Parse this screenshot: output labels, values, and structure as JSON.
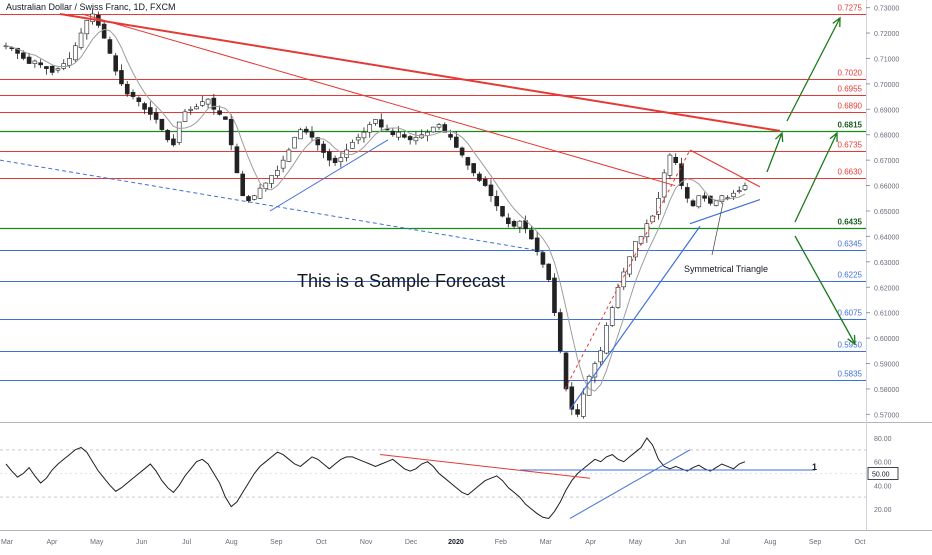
{
  "header": {
    "symbol_title": "Australian Dollar / Swiss Franc, 1D, FXCM"
  },
  "chart_data": {
    "type": "candlestick",
    "annotation_main": "This is a Sample Forecast",
    "annotation_pattern": "Symmetrical Triangle",
    "price_axis": {
      "ticks": [
        "0.73000",
        "0.72000",
        "0.71000",
        "0.70000",
        "0.69000",
        "0.68000",
        "0.67000",
        "0.66000",
        "0.65000",
        "0.64000",
        "0.63000",
        "0.62000",
        "0.61000",
        "0.60000",
        "0.59000",
        "0.58000",
        "0.57000"
      ],
      "range": [
        0.567,
        0.733
      ]
    },
    "time_axis": {
      "labels": [
        "Mar",
        "Apr",
        "May",
        "Jun",
        "Jul",
        "Aug",
        "Sep",
        "Oct",
        "Nov",
        "Dec",
        "2020",
        "Feb",
        "Mar",
        "Apr",
        "May",
        "Jun",
        "Jul",
        "Aug",
        "Sep",
        "Oct"
      ]
    },
    "levels": [
      {
        "value": "0.7275",
        "price": 0.7275,
        "color": "#e53935",
        "label_color": "#e53935",
        "bold": false
      },
      {
        "value": "0.7020",
        "price": 0.702,
        "color": "#e53935",
        "label_color": "#e53935",
        "bold": false
      },
      {
        "value": "0.6955",
        "price": 0.6955,
        "color": "#e53935",
        "label_color": "#e53935",
        "bold": false
      },
      {
        "value": "0.6890",
        "price": 0.689,
        "color": "#e53935",
        "label_color": "#e53935",
        "bold": false
      },
      {
        "value": "0.6815",
        "price": 0.6815,
        "color": "#1b8a1b",
        "label_color": "#1b5e20",
        "bold": true
      },
      {
        "value": "0.6735",
        "price": 0.6735,
        "color": "#e53935",
        "label_color": "#e53935",
        "bold": false
      },
      {
        "value": "0.6630",
        "price": 0.663,
        "color": "#e53935",
        "label_color": "#e53935",
        "bold": false
      },
      {
        "value": "0.6435",
        "price": 0.6435,
        "color": "#1b8a1b",
        "label_color": "#1b5e20",
        "bold": true
      },
      {
        "value": "0.6345",
        "price": 0.6345,
        "color": "#3f6fd8",
        "label_color": "#3f6fd8",
        "bold": false
      },
      {
        "value": "0.6225",
        "price": 0.6225,
        "color": "#3f6fd8",
        "label_color": "#3f6fd8",
        "bold": false
      },
      {
        "value": "0.6075",
        "price": 0.6075,
        "color": "#3f6fd8",
        "label_color": "#3f6fd8",
        "bold": false
      },
      {
        "value": "0.5950",
        "price": 0.595,
        "color": "#3f6fd8",
        "label_color": "#3f6fd8",
        "bold": false
      },
      {
        "value": "0.5835",
        "price": 0.5835,
        "color": "#3f6fd8",
        "label_color": "#3f6fd8",
        "bold": false
      }
    ],
    "price_path": [
      0.715,
      0.714,
      0.712,
      0.71,
      0.708,
      0.709,
      0.7075,
      0.706,
      0.7045,
      0.706,
      0.708,
      0.71,
      0.715,
      0.72,
      0.725,
      0.7275,
      0.723,
      0.718,
      0.712,
      0.705,
      0.7,
      0.696,
      0.695,
      0.693,
      0.69,
      0.688,
      0.686,
      0.682,
      0.678,
      0.676,
      0.685,
      0.689,
      0.69,
      0.691,
      0.693,
      0.694,
      0.69,
      0.688,
      0.686,
      0.676,
      0.665,
      0.656,
      0.654,
      0.656,
      0.659,
      0.661,
      0.664,
      0.666,
      0.67,
      0.674,
      0.679,
      0.682,
      0.681,
      0.679,
      0.676,
      0.673,
      0.67,
      0.669,
      0.671,
      0.674,
      0.677,
      0.679,
      0.681,
      0.684,
      0.686,
      0.683,
      0.682,
      0.68,
      0.681,
      0.679,
      0.678,
      0.679,
      0.68,
      0.681,
      0.683,
      0.684,
      0.681,
      0.679,
      0.675,
      0.672,
      0.668,
      0.665,
      0.662,
      0.66,
      0.656,
      0.652,
      0.648,
      0.645,
      0.644,
      0.646,
      0.643,
      0.639,
      0.634,
      0.629,
      0.623,
      0.61,
      0.595,
      0.58,
      0.572,
      0.57,
      0.578,
      0.585,
      0.59,
      0.595,
      0.605,
      0.612,
      0.62,
      0.626,
      0.632,
      0.638,
      0.64,
      0.645,
      0.648,
      0.655,
      0.665,
      0.672,
      0.669,
      0.66,
      0.655,
      0.652,
      0.656,
      0.655,
      0.653,
      0.654,
      0.656,
      0.655,
      0.657,
      0.658,
      0.66
    ],
    "rsi": {
      "ticks": [
        "80.00",
        "60.00",
        "40.00",
        "20.00"
      ],
      "current_value": "50.00",
      "marker": "1",
      "values": [
        58,
        52,
        47,
        50,
        55,
        48,
        42,
        46,
        53,
        58,
        62,
        66,
        70,
        72,
        68,
        60,
        52,
        46,
        40,
        35,
        38,
        42,
        46,
        50,
        54,
        58,
        52,
        44,
        38,
        34,
        40,
        48,
        54,
        60,
        62,
        58,
        50,
        42,
        30,
        22,
        26,
        34,
        42,
        50,
        56,
        60,
        64,
        68,
        66,
        62,
        58,
        56,
        60,
        64,
        62,
        58,
        54,
        58,
        62,
        64,
        64,
        62,
        60,
        58,
        56,
        58,
        60,
        62,
        58,
        54,
        52,
        54,
        58,
        60,
        56,
        50,
        46,
        42,
        38,
        34,
        32,
        36,
        40,
        44,
        46,
        48,
        44,
        38,
        34,
        30,
        24,
        20,
        16,
        13,
        12,
        18,
        26,
        36,
        44,
        50,
        54,
        58,
        62,
        60,
        64,
        66,
        62,
        60,
        64,
        68,
        72,
        80,
        74,
        62,
        56,
        54,
        56,
        54,
        52,
        55,
        57,
        54,
        52,
        55,
        58,
        56,
        54,
        58,
        60
      ]
    }
  }
}
